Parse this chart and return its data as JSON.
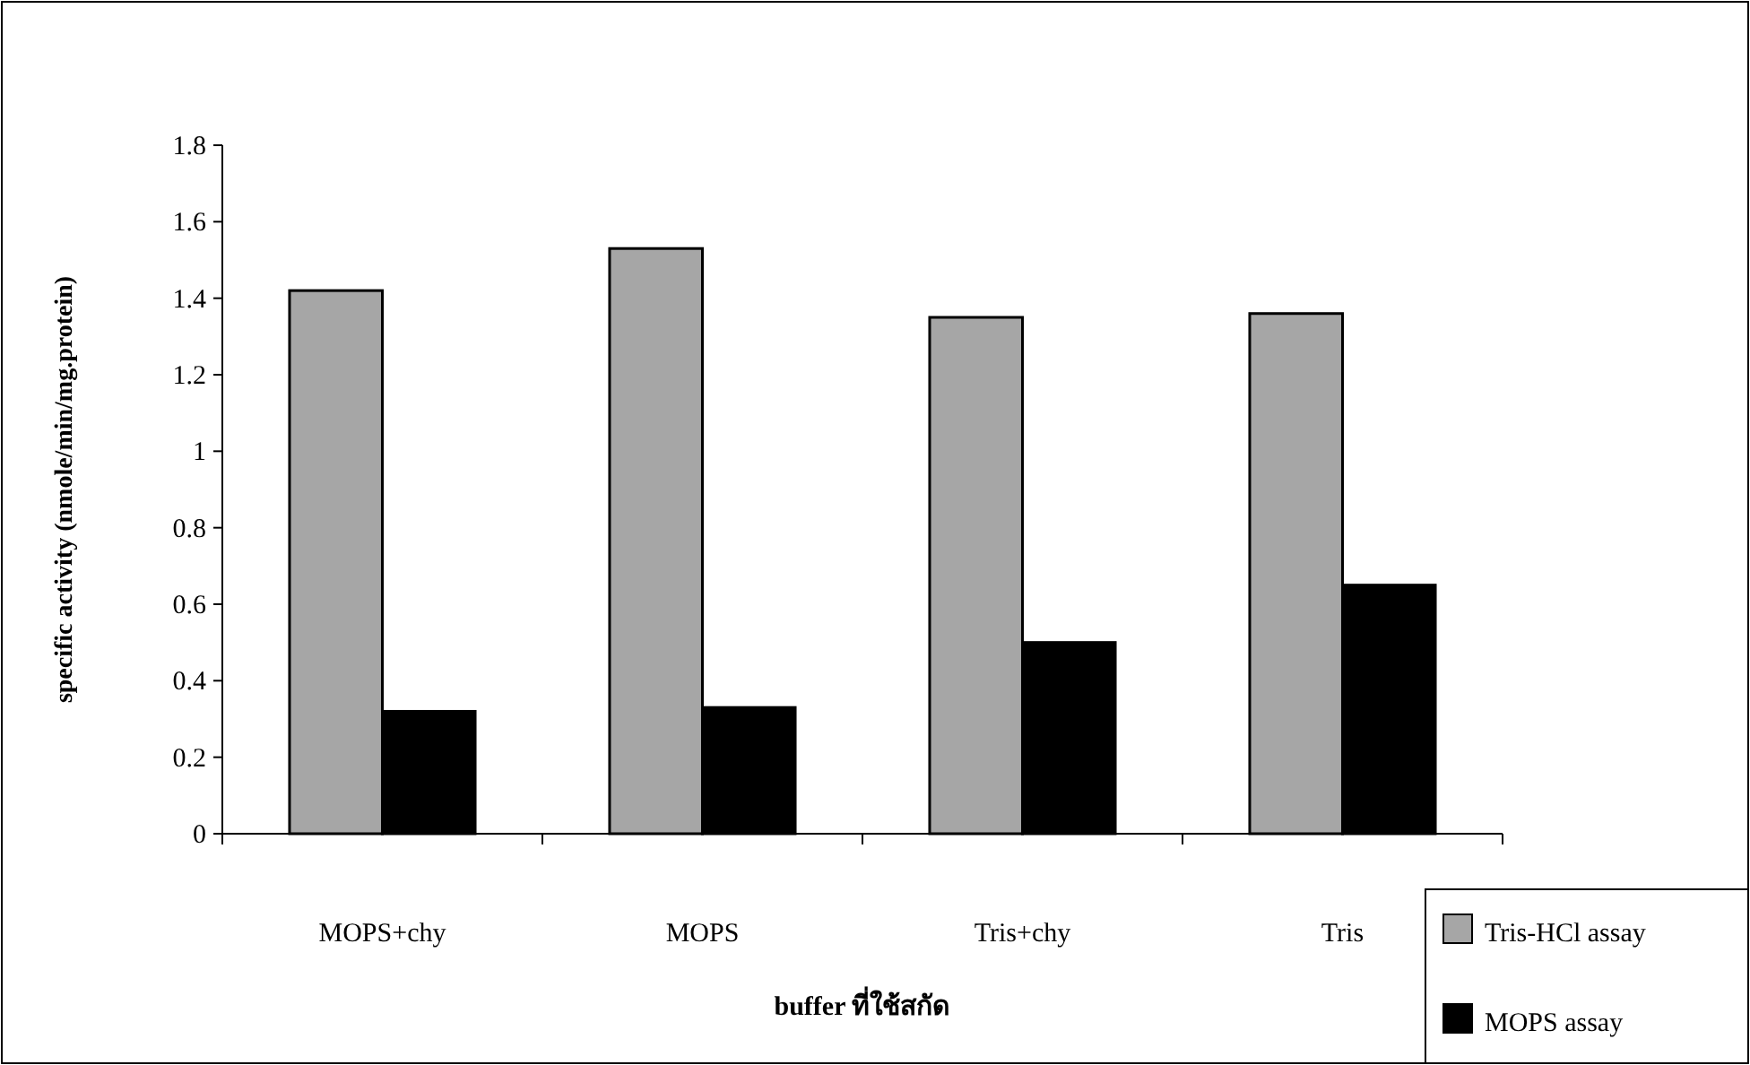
{
  "chart_data": {
    "type": "bar",
    "xlabel": "buffer ที่ใช้สกัด",
    "ylabel": "specific activity  (nmole/min/mg.protein)",
    "categories": [
      "MOPS+chy",
      "MOPS",
      "Tris+chy",
      "Tris"
    ],
    "series": [
      {
        "name": "Tris-HCl assay",
        "color": "#a6a6a6",
        "values": [
          1.42,
          1.53,
          1.35,
          1.36
        ]
      },
      {
        "name": "MOPS assay",
        "color": "#000000",
        "values": [
          0.32,
          0.33,
          0.5,
          0.65
        ]
      }
    ],
    "ylim": [
      0,
      1.8
    ],
    "yticks": [
      0,
      {
        "value": 0.2,
        "label": "0.2"
      },
      {
        "value": 0.4,
        "label": "0.4"
      },
      {
        "value": 0.6,
        "label": "0.6"
      },
      {
        "value": 0.8,
        "label": "0.8"
      },
      1,
      {
        "value": 1.2,
        "label": "1.2"
      },
      {
        "value": 1.4,
        "label": "1.4"
      },
      {
        "value": 1.6,
        "label": "1.6"
      },
      {
        "value": 1.8,
        "label": "1.8"
      }
    ],
    "grid": false,
    "legend": "bottom right"
  }
}
